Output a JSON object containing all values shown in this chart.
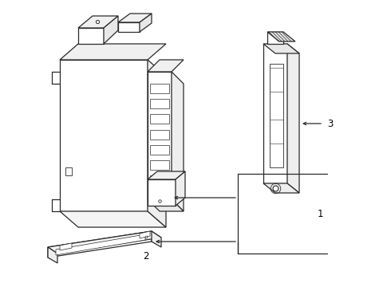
{
  "bg_color": "#ffffff",
  "line_color": "#2a2a2a",
  "line_width": 0.9,
  "label_fontsize": 8.5,
  "fig_width": 4.9,
  "fig_height": 3.6,
  "dpi": 100
}
